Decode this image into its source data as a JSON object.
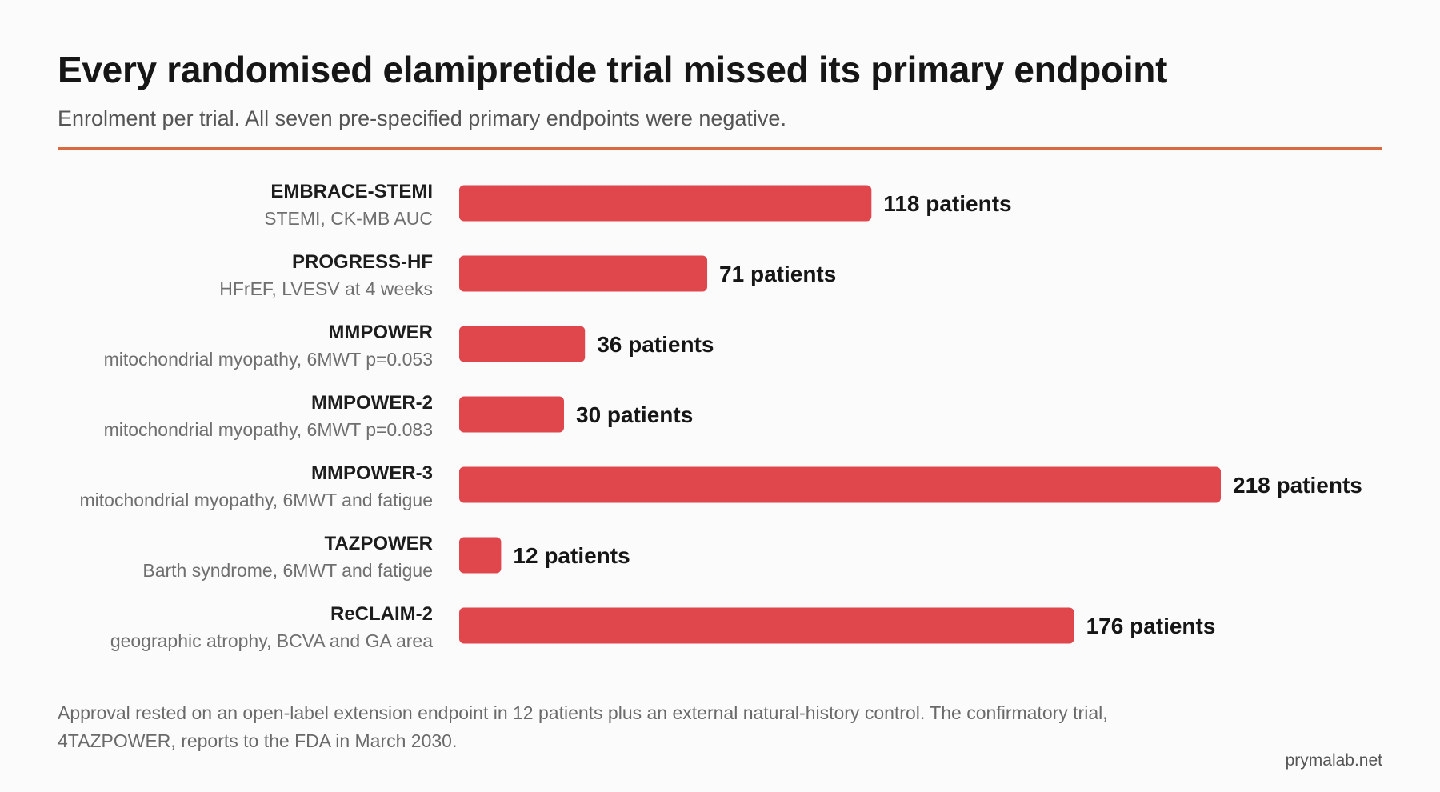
{
  "header": {
    "title": "Every randomised elamipretide trial missed its primary endpoint",
    "subtitle": "Enrolment per trial. All seven pre-specified primary endpoints were negative."
  },
  "colors": {
    "bar": "#e0474c",
    "accent_rule": "#d9693f"
  },
  "chart_data": {
    "type": "bar",
    "orientation": "horizontal",
    "categories": [
      "EMBRACE-STEMI",
      "PROGRESS-HF",
      "MMPOWER",
      "MMPOWER-2",
      "MMPOWER-3",
      "TAZPOWER",
      "ReCLAIM-2"
    ],
    "descriptions": [
      "STEMI, CK-MB AUC",
      "HFrEF, LVESV at 4 weeks",
      "mitochondrial myopathy, 6MWT p=0.053",
      "mitochondrial myopathy, 6MWT p=0.083",
      "mitochondrial myopathy, 6MWT and fatigue",
      "Barth syndrome, 6MWT and fatigue",
      "geographic atrophy, BCVA and GA area"
    ],
    "values": [
      118,
      71,
      36,
      30,
      218,
      12,
      176
    ],
    "value_labels": [
      "118 patients",
      "71 patients",
      "36 patients",
      "30 patients",
      "218 patients",
      "12 patients",
      "176 patients"
    ],
    "xlim": [
      0,
      218
    ],
    "grid": false,
    "legend": "none"
  },
  "footer": {
    "note": "Approval rested on an open-label extension endpoint in 12 patients plus an external natural-history control. The confirmatory trial, 4TAZPOWER, reports to the FDA in March 2030.",
    "credit": "prymalab.net"
  }
}
